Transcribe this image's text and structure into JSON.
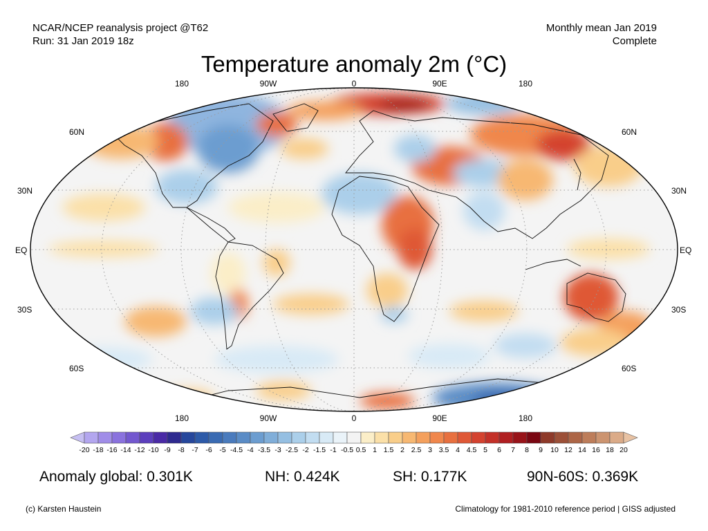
{
  "header": {
    "left_line1": "NCAR/NCEP reanalysis project @T62",
    "left_line2": "Run: 31 Jan 2019 18z",
    "right_line1": "Monthly mean Jan 2019",
    "right_line2": "Complete"
  },
  "title": "Temperature anomaly 2m (°C)",
  "map": {
    "lon_labels_top": [
      "180",
      "90W",
      "0",
      "90E",
      "180"
    ],
    "lon_labels_bottom": [
      "180",
      "90W",
      "0",
      "90E",
      "180"
    ],
    "lat_labels_left": [
      "60N",
      "30N",
      "EQ",
      "30S",
      "60S"
    ],
    "lat_labels_right": [
      "60N",
      "30N",
      "EQ",
      "30S",
      "60S"
    ]
  },
  "colorbar": {
    "labels": [
      "-20",
      "-18",
      "-16",
      "-14",
      "-12",
      "-10",
      "-9",
      "-8",
      "-7",
      "-6",
      "-5",
      "-4.5",
      "-4",
      "-3.5",
      "-3",
      "-2.5",
      "-2",
      "-1.5",
      "-1",
      "-0.5",
      "0.5",
      "1",
      "1.5",
      "2",
      "2.5",
      "3",
      "3.5",
      "4",
      "4.5",
      "5",
      "6",
      "7",
      "8",
      "9",
      "10",
      "12",
      "14",
      "16",
      "18",
      "20"
    ],
    "colors": [
      "#c6bff2",
      "#b3a6ef",
      "#a08de8",
      "#8a72de",
      "#7358cf",
      "#5c3fbd",
      "#4a2aa6",
      "#2e2a8f",
      "#26479c",
      "#2d5aa8",
      "#3a6bb3",
      "#4a7bbd",
      "#5a8cc6",
      "#6c9dd0",
      "#80aed9",
      "#95bfe2",
      "#abcfea",
      "#c2ddf1",
      "#d8eaf6",
      "#eaf3f9",
      "#f3f3f3",
      "#fbeec8",
      "#fbe0a8",
      "#f9ce8a",
      "#f7b872",
      "#f4a05d",
      "#f0874c",
      "#e8703f",
      "#df5836",
      "#d4422f",
      "#c33028",
      "#b01f21",
      "#981319",
      "#7a0712",
      "#8e3a2a",
      "#9c5038",
      "#ad6647",
      "#bd7d5a",
      "#cc9470",
      "#dbab88",
      "#e8c2a3"
    ]
  },
  "stats": {
    "global": "Anomaly global: 0.301K",
    "nh": "NH: 0.424K",
    "sh": "SH: 0.177K",
    "arctic": "90N-60S: 0.369K"
  },
  "footer": {
    "credit": "(c) Karsten Haustein",
    "climatology": "Climatology for 1981-2010 reference period | GISS adjusted"
  }
}
